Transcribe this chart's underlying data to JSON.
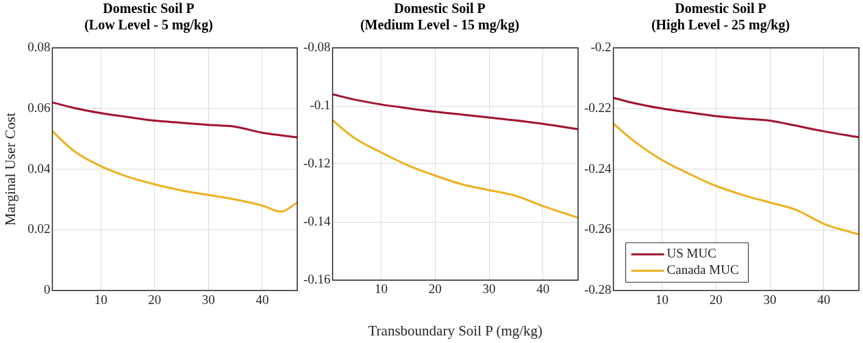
{
  "chart_data": [
    {
      "type": "line",
      "title": "Domestic Soil P",
      "subtitle": "(Low Level - 5 mg/kg)",
      "ylabel": "Marginal User Cost",
      "xlim": [
        1,
        46.5
      ],
      "xticks": [
        10,
        20,
        30,
        40
      ],
      "ylim": [
        0,
        0.08
      ],
      "yticks": [
        0,
        0.02,
        0.04,
        0.06,
        0.08
      ],
      "grid": true,
      "legend": false,
      "marker": "none",
      "series": [
        {
          "color": "#a2142f",
          "x": [
            1,
            5,
            10,
            15,
            20,
            25,
            30,
            35,
            40,
            46.5
          ],
          "values": [
            0.062,
            0.0602,
            0.0585,
            0.0572,
            0.056,
            0.0553,
            0.0546,
            0.054,
            0.052,
            0.0505
          ]
        },
        {
          "color": "#edb120",
          "x": [
            1,
            5,
            10,
            15,
            20,
            25,
            30,
            35,
            40,
            43.5,
            46.5
          ],
          "values": [
            0.0525,
            0.046,
            0.041,
            0.0375,
            0.035,
            0.033,
            0.0315,
            0.03,
            0.028,
            0.026,
            0.029
          ]
        }
      ]
    },
    {
      "type": "line",
      "title": "Domestic Soil P",
      "subtitle": "(Medium Level - 15 mg/kg)",
      "xlabel": "Transboundary Soil P (mg/kg)",
      "xlim": [
        1,
        46.5
      ],
      "xticks": [
        10,
        20,
        30,
        40
      ],
      "ylim": [
        -0.16,
        -0.08
      ],
      "yticks": [
        -0.16,
        -0.14,
        -0.12,
        -0.1,
        -0.08
      ],
      "grid": true,
      "legend": false,
      "marker": "none",
      "series": [
        {
          "color": "#a2142f",
          "x": [
            1,
            5,
            10,
            15,
            20,
            25,
            30,
            35,
            40,
            46.5
          ],
          "values": [
            -0.096,
            -0.0978,
            -0.0995,
            -0.1008,
            -0.102,
            -0.103,
            -0.104,
            -0.105,
            -0.1062,
            -0.108
          ]
        },
        {
          "color": "#edb120",
          "x": [
            1,
            5,
            10,
            15,
            20,
            25,
            30,
            35,
            40,
            46.5
          ],
          "values": [
            -0.105,
            -0.111,
            -0.116,
            -0.1205,
            -0.124,
            -0.127,
            -0.129,
            -0.131,
            -0.1345,
            -0.1385
          ]
        }
      ]
    },
    {
      "type": "line",
      "title": "Domestic Soil P",
      "subtitle": "(High Level - 25 mg/kg)",
      "xlim": [
        1,
        46.5
      ],
      "xticks": [
        10,
        20,
        30,
        40
      ],
      "ylim": [
        -0.28,
        -0.2
      ],
      "yticks": [
        -0.28,
        -0.26,
        -0.24,
        -0.22,
        -0.2
      ],
      "grid": true,
      "legend": "bottom left",
      "marker": "none",
      "series": [
        {
          "name": "US MUC",
          "color": "#a2142f",
          "x": [
            1,
            5,
            10,
            15,
            20,
            25,
            30,
            33,
            40,
            46.5
          ],
          "values": [
            -0.2165,
            -0.2183,
            -0.22,
            -0.2213,
            -0.2225,
            -0.2233,
            -0.224,
            -0.225,
            -0.2275,
            -0.2295
          ]
        },
        {
          "name": "Canada MUC",
          "color": "#edb120",
          "x": [
            1,
            5,
            10,
            15,
            20,
            25,
            30,
            35,
            40,
            46.5
          ],
          "values": [
            -0.225,
            -0.231,
            -0.237,
            -0.2415,
            -0.2455,
            -0.2485,
            -0.251,
            -0.2535,
            -0.258,
            -0.2615
          ]
        }
      ]
    }
  ]
}
